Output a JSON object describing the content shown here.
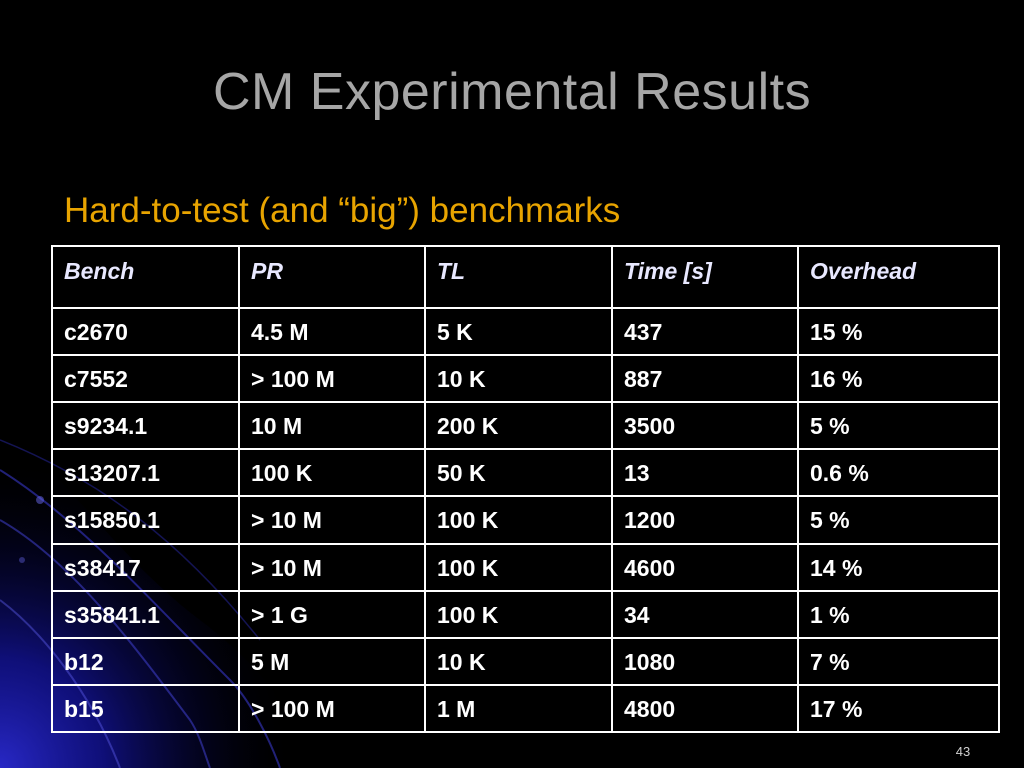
{
  "slide": {
    "title": "CM Experimental Results",
    "subtitle": "Hard-to-test (and “big”) benchmarks",
    "number": "43"
  },
  "colors": {
    "background": "#000000",
    "title": "#a6a6a6",
    "subtitle": "#e8a400",
    "table_text": "#ffffff",
    "table_border": "#ffffff",
    "accent_blue": "#1a1aa0"
  },
  "table": {
    "headers": [
      "Bench",
      "PR",
      "TL",
      "Time [s]",
      "Overhead"
    ],
    "rows": [
      [
        "c2670",
        "4.5 M",
        "5 K",
        "437",
        "15 %"
      ],
      [
        "c7552",
        "> 100 M",
        "10 K",
        "887",
        "16 %"
      ],
      [
        "s9234.1",
        "10 M",
        "200 K",
        "3500",
        "5 %"
      ],
      [
        "s13207.1",
        "100 K",
        "50 K",
        "13",
        "0.6 %"
      ],
      [
        "s15850.1",
        "> 10 M",
        "100 K",
        "1200",
        "5 %"
      ],
      [
        "s38417",
        "> 10 M",
        "100 K",
        "4600",
        "14 %"
      ],
      [
        "s35841.1",
        "> 1 G",
        "100 K",
        "34",
        "1 %"
      ],
      [
        "b12",
        "5 M",
        "10 K",
        "1080",
        "7 %"
      ],
      [
        "b15",
        "> 100 M",
        "1 M",
        "4800",
        "17 %"
      ]
    ]
  }
}
